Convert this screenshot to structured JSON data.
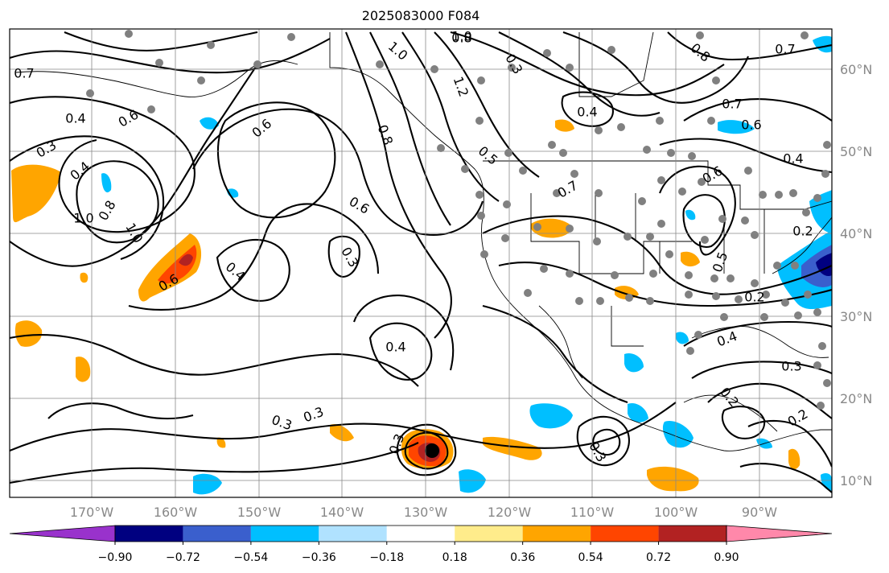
{
  "title": "2025083000 F084",
  "map": {
    "lon_labels": [
      "170°W",
      "160°W",
      "150°W",
      "140°W",
      "130°W",
      "120°W",
      "110°W",
      "100°W",
      "90°W"
    ],
    "lat_labels": [
      "60°N",
      "50°N",
      "40°N",
      "30°N",
      "20°N",
      "10°N"
    ],
    "contour_labels": [
      "0.4",
      "0.6",
      "0.3",
      "0.7",
      "1.0",
      "0.8",
      "0.4",
      "1.0",
      "0.6",
      "0.4",
      "0.6",
      "0.3",
      "0.6",
      "0.4",
      "0.3",
      "0.3",
      "1.0",
      "1.2",
      "0.8",
      "0.5",
      "0.7",
      "0.8",
      "1.0",
      "0.4",
      "0.6",
      "0.4",
      "0.2",
      "0.3",
      "0.2",
      "0.4",
      "0.3",
      "0.3",
      "0.2",
      "0.2",
      "0.5",
      "0.7",
      "0.3",
      "0.8",
      "0.7",
      "0.6"
    ],
    "colors": {
      "axis_text": "#888888",
      "grid": "#888888",
      "contour": "#000000",
      "station": "#808080"
    }
  },
  "colorbar": {
    "colors": [
      "#9932cc",
      "#000080",
      "#3a5fcd",
      "#00bfff",
      "#b0e2ff",
      "#ffffff",
      "#ffec8b",
      "#ffa500",
      "#ff4500",
      "#b22222",
      "#ff88aa"
    ],
    "tick_labels": [
      "−0.90",
      "−0.72",
      "−0.54",
      "−0.36",
      "−0.18",
      "0.18",
      "0.36",
      "0.54",
      "0.72",
      "0.90"
    ]
  }
}
